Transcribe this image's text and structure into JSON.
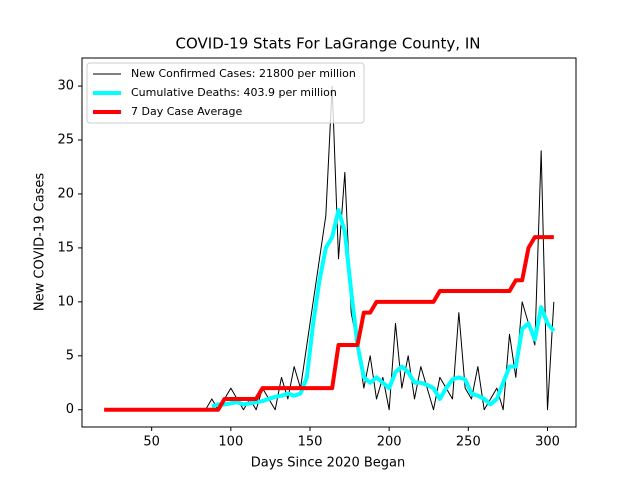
{
  "chart_data": {
    "type": "line",
    "title": "COVID-19 Stats For LaGrange County, IN",
    "xlabel": "Days Since 2020 Began",
    "ylabel": "New COVID-19 Cases",
    "x": [
      20,
      24,
      28,
      32,
      36,
      40,
      44,
      48,
      52,
      56,
      60,
      64,
      68,
      72,
      76,
      80,
      84,
      88,
      92,
      96,
      100,
      104,
      108,
      112,
      116,
      120,
      124,
      128,
      132,
      136,
      140,
      144,
      148,
      152,
      156,
      160,
      164,
      168,
      172,
      176,
      180,
      184,
      188,
      192,
      196,
      200,
      204,
      208,
      212,
      216,
      220,
      224,
      228,
      232,
      236,
      240,
      244,
      248,
      252,
      256,
      260,
      264,
      268,
      272,
      276,
      280,
      284,
      288,
      292,
      296,
      300,
      304
    ],
    "series": [
      {
        "name": "New Confirmed Cases: 21800 per million",
        "color": "#000000",
        "width": 1,
        "values": [
          0,
          0,
          0,
          0,
          0,
          0,
          0,
          0,
          0,
          0,
          0,
          0,
          0,
          0,
          0,
          0,
          0,
          1,
          0,
          1,
          2,
          1,
          0,
          1,
          0,
          2,
          1,
          0,
          3,
          1,
          4,
          2,
          6,
          10,
          14,
          18,
          30,
          14,
          22,
          9,
          6,
          2,
          5,
          1,
          3,
          0,
          8,
          2,
          5,
          1,
          4,
          2,
          0,
          3,
          2,
          1,
          9,
          2,
          1,
          4,
          0,
          1,
          2,
          0,
          7,
          3,
          10,
          8,
          6,
          24,
          0,
          10
        ]
      },
      {
        "name": "Cumulative Deaths: 403.9 per million",
        "color": "#00ffff",
        "width": 4,
        "values": [
          null,
          null,
          null,
          null,
          null,
          null,
          null,
          null,
          null,
          null,
          null,
          null,
          null,
          null,
          null,
          null,
          null,
          0.3,
          0.5,
          0.5,
          0.6,
          0.7,
          0.5,
          0.6,
          0.7,
          0.8,
          1,
          1.2,
          1.3,
          1.5,
          1.3,
          1.5,
          3,
          8,
          12,
          15,
          16,
          18.5,
          16.5,
          11,
          6,
          3,
          2.5,
          3,
          2.5,
          2,
          3.5,
          4,
          3.5,
          2.5,
          2.5,
          2.3,
          2,
          1,
          2,
          2.8,
          3,
          2.8,
          1.5,
          1.3,
          1,
          0.5,
          1,
          2.5,
          4,
          4,
          7.5,
          8,
          6.5,
          9.5,
          8,
          7.3
        ]
      },
      {
        "name": "7 Day Case Average",
        "color": "#ff0000",
        "width": 4,
        "values": [
          0,
          0,
          0,
          0,
          0,
          0,
          0,
          0,
          0,
          0,
          0,
          0,
          0,
          0,
          0,
          0,
          0,
          0,
          0,
          1,
          1,
          1,
          1,
          1,
          1,
          2,
          2,
          2,
          2,
          2,
          2,
          2,
          2,
          2,
          2,
          2,
          2,
          6,
          6,
          6,
          6,
          9,
          9,
          10,
          10,
          10,
          10,
          10,
          10,
          10,
          10,
          10,
          10,
          11,
          11,
          11,
          11,
          11,
          11,
          11,
          11,
          11,
          11,
          11,
          11,
          12,
          12,
          15,
          16,
          16,
          16,
          16
        ]
      }
    ],
    "xlim": [
      6,
      318
    ],
    "xticks": [
      50,
      100,
      150,
      200,
      250,
      300
    ],
    "ylim": [
      -1.6,
      32.6
    ],
    "yticks": [
      0,
      5,
      10,
      15,
      20,
      25,
      30
    ],
    "legend": "upper left"
  }
}
